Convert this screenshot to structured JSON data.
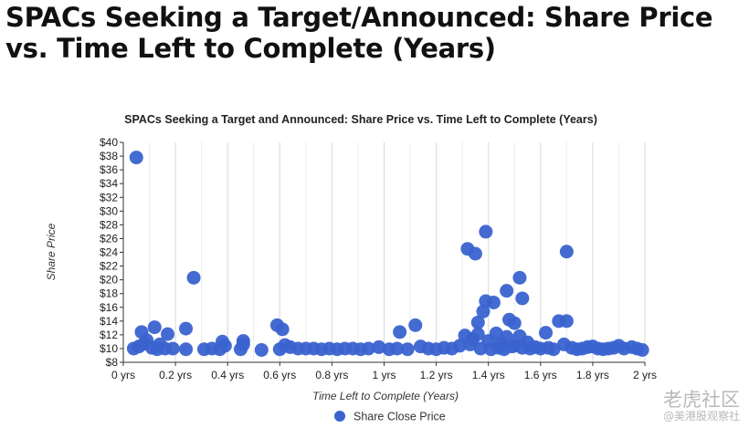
{
  "page": {
    "headline": "SPACs Seeking a Target/Announced:  Share Price vs. Time Left to Complete (Years)",
    "watermark_1": "老虎社区",
    "watermark_2": "@美港股观察社"
  },
  "chart_data": {
    "type": "scatter",
    "title": "SPACs Seeking a Target and Announced: Share Price vs. Time Left to Complete (Years)",
    "xlabel": "Time Left to Complete (Years)",
    "ylabel": "Share Price",
    "xlim": [
      0,
      2
    ],
    "ylim": [
      8,
      40
    ],
    "x_ticks": [
      0,
      0.2,
      0.4,
      0.6,
      0.8,
      1.0,
      1.2,
      1.4,
      1.6,
      1.8,
      2.0
    ],
    "x_tick_labels": [
      "0 yrs",
      "0.2 yrs",
      "0.4 yrs",
      "0.6 yrs",
      "0.8 yrs",
      "1 yrs",
      "1.2 yrs",
      "1.4 yrs",
      "1.6 yrs",
      "1.8 yrs",
      "2 yrs"
    ],
    "y_ticks": [
      8,
      10,
      12,
      14,
      16,
      18,
      20,
      22,
      24,
      26,
      28,
      30,
      32,
      34,
      36,
      38,
      40
    ],
    "y_tick_labels": [
      "$8",
      "$10",
      "$12",
      "$14",
      "$16",
      "$18",
      "$20",
      "$22",
      "$24",
      "$26",
      "$28",
      "$30",
      "$32",
      "$34",
      "$36",
      "$38",
      "$40"
    ],
    "grid": "vertical",
    "legend_position": "bottom",
    "color": "#3a63cf",
    "series": [
      {
        "name": "Share Close Price",
        "points": [
          [
            0.05,
            37.8
          ],
          [
            0.27,
            20.3
          ],
          [
            0.24,
            12.9
          ],
          [
            0.12,
            13.1
          ],
          [
            0.07,
            12.4
          ],
          [
            0.17,
            12.1
          ],
          [
            0.09,
            11.2
          ],
          [
            0.14,
            10.6
          ],
          [
            0.04,
            10.0
          ],
          [
            0.06,
            10.3
          ],
          [
            0.08,
            10.7
          ],
          [
            0.11,
            10.1
          ],
          [
            0.13,
            9.9
          ],
          [
            0.16,
            10.0
          ],
          [
            0.19,
            10.0
          ],
          [
            0.24,
            9.9
          ],
          [
            0.31,
            9.9
          ],
          [
            0.34,
            10.0
          ],
          [
            0.38,
            11.0
          ],
          [
            0.37,
            9.9
          ],
          [
            0.39,
            10.4
          ],
          [
            0.46,
            11.1
          ],
          [
            0.46,
            10.6
          ],
          [
            0.45,
            9.9
          ],
          [
            0.53,
            9.8
          ],
          [
            0.59,
            13.4
          ],
          [
            0.61,
            12.8
          ],
          [
            0.6,
            9.9
          ],
          [
            0.62,
            10.5
          ],
          [
            0.64,
            10.2
          ],
          [
            0.67,
            10.0
          ],
          [
            0.7,
            10.0
          ],
          [
            0.73,
            10.0
          ],
          [
            0.76,
            9.9
          ],
          [
            0.79,
            10.0
          ],
          [
            0.82,
            9.9
          ],
          [
            0.85,
            10.0
          ],
          [
            0.88,
            10.0
          ],
          [
            0.91,
            9.9
          ],
          [
            0.94,
            10.0
          ],
          [
            0.98,
            10.2
          ],
          [
            1.02,
            9.9
          ],
          [
            1.06,
            12.4
          ],
          [
            1.05,
            10.0
          ],
          [
            1.09,
            9.9
          ],
          [
            1.12,
            13.4
          ],
          [
            1.14,
            10.3
          ],
          [
            1.17,
            10.0
          ],
          [
            1.2,
            9.9
          ],
          [
            1.23,
            10.1
          ],
          [
            1.26,
            10.0
          ],
          [
            1.29,
            10.4
          ],
          [
            1.31,
            11.9
          ],
          [
            1.32,
            24.5
          ],
          [
            1.35,
            23.8
          ],
          [
            1.39,
            27.0
          ],
          [
            1.36,
            13.8
          ],
          [
            1.38,
            15.4
          ],
          [
            1.39,
            16.9
          ],
          [
            1.33,
            10.6
          ],
          [
            1.34,
            11.4
          ],
          [
            1.36,
            12.1
          ],
          [
            1.37,
            10.0
          ],
          [
            1.4,
            11.1
          ],
          [
            1.42,
            16.7
          ],
          [
            1.43,
            12.2
          ],
          [
            1.45,
            10.8
          ],
          [
            1.47,
            11.7
          ],
          [
            1.47,
            18.4
          ],
          [
            1.48,
            14.2
          ],
          [
            1.5,
            13.7
          ],
          [
            1.52,
            20.3
          ],
          [
            1.53,
            17.3
          ],
          [
            1.52,
            11.8
          ],
          [
            1.5,
            10.4
          ],
          [
            1.53,
            10.1
          ],
          [
            1.55,
            10.9
          ],
          [
            1.41,
            9.9
          ],
          [
            1.44,
            10.1
          ],
          [
            1.46,
            9.9
          ],
          [
            1.49,
            10.3
          ],
          [
            1.56,
            10.0
          ],
          [
            1.58,
            10.2
          ],
          [
            1.6,
            10.0
          ],
          [
            1.62,
            12.3
          ],
          [
            1.63,
            10.1
          ],
          [
            1.65,
            9.9
          ],
          [
            1.67,
            14.0
          ],
          [
            1.7,
            24.1
          ],
          [
            1.7,
            14.0
          ],
          [
            1.69,
            10.6
          ],
          [
            1.72,
            10.1
          ],
          [
            1.74,
            9.9
          ],
          [
            1.76,
            10.0
          ],
          [
            1.78,
            10.2
          ],
          [
            1.8,
            10.3
          ],
          [
            1.82,
            10.0
          ],
          [
            1.84,
            9.9
          ],
          [
            1.86,
            10.0
          ],
          [
            1.88,
            10.1
          ],
          [
            1.9,
            10.4
          ],
          [
            1.92,
            10.0
          ],
          [
            1.95,
            10.2
          ],
          [
            1.97,
            10.0
          ],
          [
            1.99,
            9.8
          ]
        ]
      }
    ]
  }
}
